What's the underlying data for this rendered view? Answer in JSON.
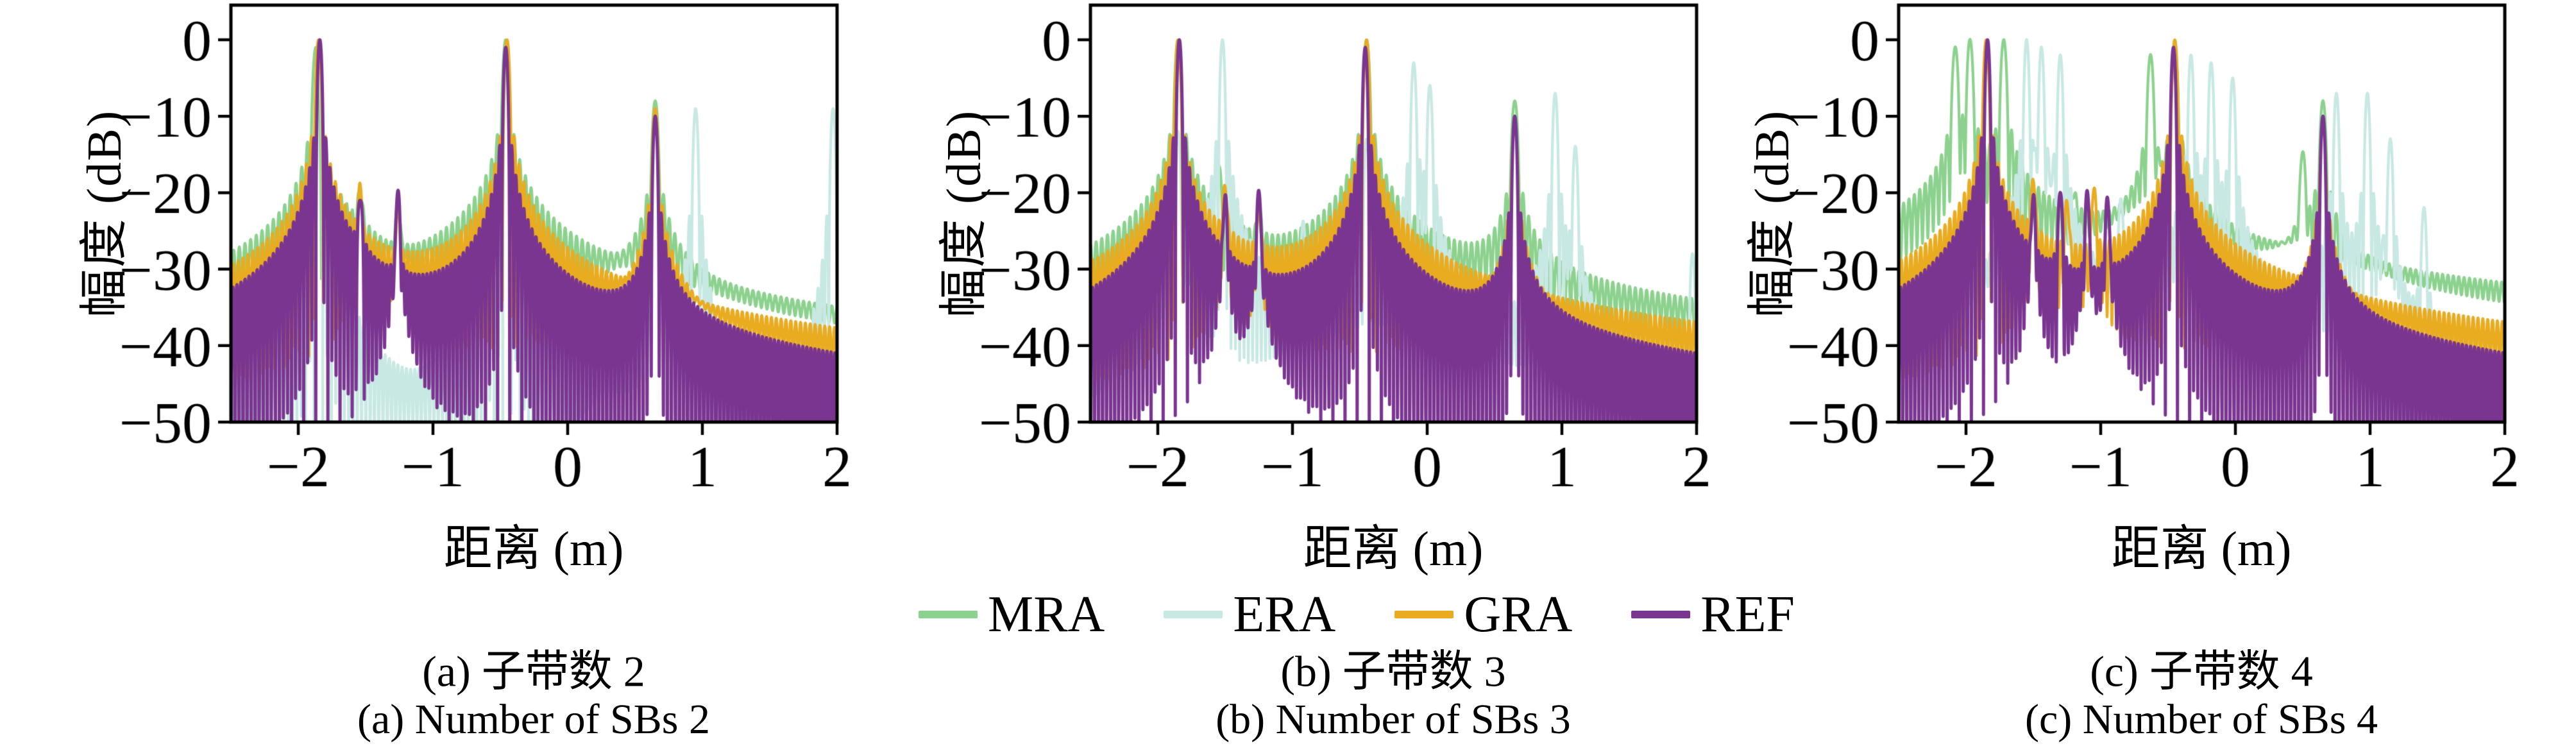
{
  "figure": {
    "background": "#ffffff",
    "axis_color": "#000000",
    "legend": {
      "items": [
        {
          "label": "MRA",
          "color": "#8cd28e"
        },
        {
          "label": "ERA",
          "color": "#c8e8e3"
        },
        {
          "label": "GRA",
          "color": "#e9ab1f"
        },
        {
          "label": "REF",
          "color": "#7a3591"
        }
      ]
    }
  },
  "chart_data": {
    "type": "line",
    "xlabel": "距离 (m)",
    "ylabel": "幅度 (dB)",
    "xlim": [
      -2.5,
      2
    ],
    "ylim": [
      -50,
      0
    ],
    "grid": false,
    "legend_position": "bottom-center",
    "xticks": {
      "values": [
        -2,
        -1,
        0,
        1,
        2
      ],
      "labels": [
        "−2",
        "−1",
        "0",
        "1",
        "2"
      ]
    },
    "yticks": {
      "values": [
        0,
        -10,
        -20,
        -30,
        -40,
        -50
      ],
      "labels": [
        "0",
        "−10",
        "−20",
        "−30",
        "−40",
        "−50"
      ]
    },
    "lobe_width": 0.032,
    "charts": [
      {
        "caption_zh": "(a) 子带数 2",
        "caption_en": "(a) Number of SBs 2",
        "series": [
          {
            "name": "MRA",
            "decay": 0.72,
            "w": 0.042,
            "peaks": [
              [
                -1.87,
                -1
              ],
              [
                -1.54,
                -21
              ],
              [
                -1.26,
                -23
              ],
              [
                -0.46,
                0
              ],
              [
                0.65,
                -8
              ]
            ]
          },
          {
            "name": "ERA",
            "decay": 1.25,
            "w": 0.032,
            "peaks": [
              [
                -1.85,
                -2
              ],
              [
                -0.45,
                -2
              ],
              [
                0.65,
                -9
              ],
              [
                0.95,
                -9
              ],
              [
                1.97,
                -9
              ]
            ]
          },
          {
            "name": "GRA",
            "decay": 0.8,
            "w": 0.036,
            "peaks": [
              [
                -1.85,
                0
              ],
              [
                -1.54,
                -20
              ],
              [
                -1.26,
                -23
              ],
              [
                -0.45,
                0
              ],
              [
                0.65,
                -9
              ]
            ]
          },
          {
            "name": "REF",
            "decay": 0.86,
            "w": 0.03,
            "peaks": [
              [
                -1.84,
                0
              ],
              [
                -1.54,
                -21
              ],
              [
                -1.26,
                -20
              ],
              [
                -0.46,
                -1
              ],
              [
                0.65,
                -10
              ]
            ]
          }
        ]
      },
      {
        "caption_zh": "(b) 子带数 3",
        "caption_en": "(b) Number of SBs 3",
        "series": [
          {
            "name": "MRA",
            "decay": 0.72,
            "w": 0.042,
            "peaks": [
              [
                -1.85,
                0
              ],
              [
                -1.55,
                -17
              ],
              [
                -1.25,
                -24
              ],
              [
                -0.45,
                0
              ],
              [
                0.65,
                -8
              ]
            ]
          },
          {
            "name": "ERA",
            "decay": 1.0,
            "w": 0.032,
            "peaks": [
              [
                -1.85,
                -12
              ],
              [
                -1.52,
                0
              ],
              [
                -0.92,
                -24
              ],
              [
                -0.45,
                -13
              ],
              [
                -0.1,
                -3
              ],
              [
                0.02,
                -6
              ],
              [
                0.95,
                -7
              ],
              [
                1.1,
                -14
              ],
              [
                1.97,
                -28
              ]
            ]
          },
          {
            "name": "GRA",
            "decay": 0.78,
            "w": 0.036,
            "peaks": [
              [
                -1.85,
                0
              ],
              [
                -1.5,
                -20
              ],
              [
                -1.25,
                -23
              ],
              [
                -0.45,
                0
              ],
              [
                0.65,
                -11
              ]
            ]
          },
          {
            "name": "REF",
            "decay": 0.86,
            "w": 0.03,
            "peaks": [
              [
                -1.84,
                0
              ],
              [
                -1.5,
                -21
              ],
              [
                -1.25,
                -20
              ],
              [
                -0.46,
                -1
              ],
              [
                0.65,
                -10
              ]
            ]
          }
        ]
      },
      {
        "caption_zh": "(c) 子带数 4",
        "caption_en": "(c) Number of SBs 4",
        "series": [
          {
            "name": "MRA",
            "decay": 0.7,
            "w": 0.04,
            "peaks": [
              [
                -2.08,
                -1
              ],
              [
                -1.97,
                0
              ],
              [
                -1.72,
                0
              ],
              [
                -1.2,
                -22
              ],
              [
                -0.63,
                -2
              ],
              [
                -0.45,
                -1
              ],
              [
                0.5,
                -15
              ],
              [
                0.65,
                -8
              ]
            ]
          },
          {
            "name": "ERA",
            "decay": 1.0,
            "w": 0.032,
            "peaks": [
              [
                -1.55,
                0
              ],
              [
                -1.44,
                -1
              ],
              [
                -1.3,
                -2
              ],
              [
                -0.85,
                -21
              ],
              [
                -0.33,
                -2
              ],
              [
                -0.18,
                -3
              ],
              [
                -0.02,
                -5
              ],
              [
                0.75,
                -7
              ],
              [
                0.98,
                -7
              ],
              [
                1.15,
                -13
              ],
              [
                1.4,
                -22
              ]
            ]
          },
          {
            "name": "GRA",
            "decay": 0.78,
            "w": 0.036,
            "peaks": [
              [
                -1.85,
                0
              ],
              [
                -1.5,
                -19
              ],
              [
                -1.25,
                -22
              ],
              [
                -1.05,
                -20
              ],
              [
                -0.45,
                0
              ],
              [
                0.65,
                -11
              ]
            ]
          },
          {
            "name": "REF",
            "decay": 0.86,
            "w": 0.03,
            "peaks": [
              [
                -1.84,
                0
              ],
              [
                -1.5,
                -21
              ],
              [
                -1.3,
                -20
              ],
              [
                -1.1,
                -20
              ],
              [
                -0.95,
                -21
              ],
              [
                -0.46,
                -1
              ],
              [
                0.65,
                -10
              ]
            ]
          }
        ]
      }
    ]
  }
}
